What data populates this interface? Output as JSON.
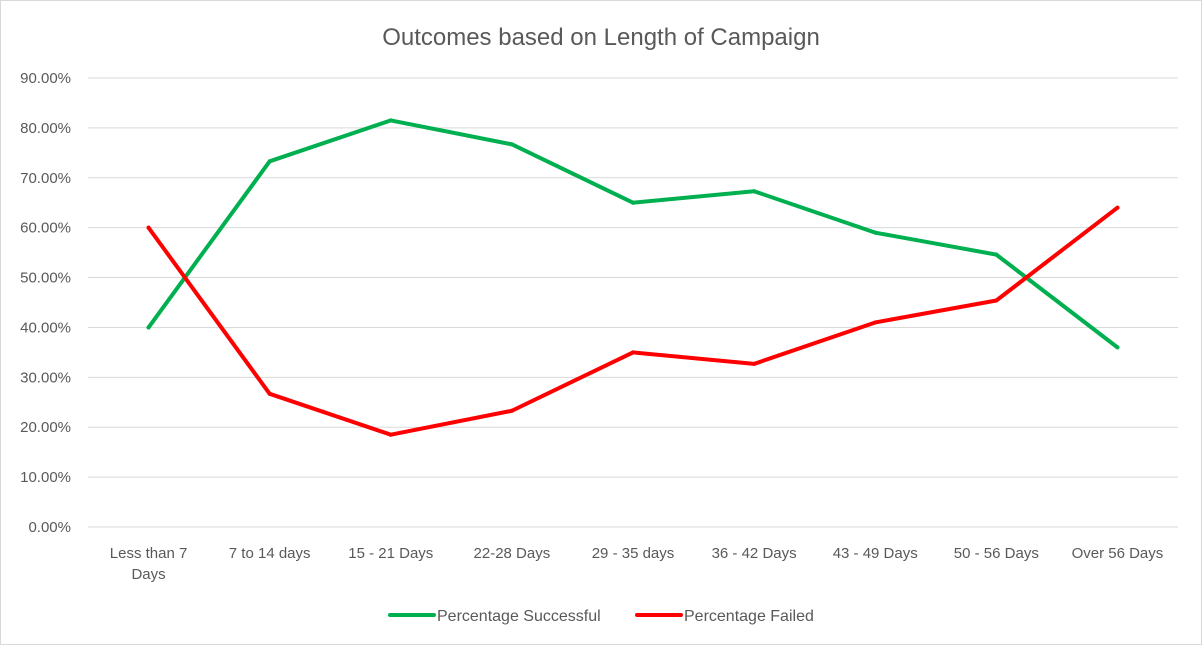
{
  "chart_data": {
    "type": "line",
    "title": "Outcomes based on Length of Campaign",
    "xlabel": "",
    "ylabel": "",
    "categories": [
      [
        "Less than 7",
        "Days"
      ],
      [
        "7 to 14 days"
      ],
      [
        "15 - 21 Days"
      ],
      [
        "22-28 Days"
      ],
      [
        "29 - 35 days"
      ],
      [
        "36 - 42 Days"
      ],
      [
        "43 - 49 Days"
      ],
      [
        "50 - 56 Days"
      ],
      [
        "Over 56 Days"
      ]
    ],
    "yticks": [
      "0.00%",
      "10.00%",
      "20.00%",
      "30.00%",
      "40.00%",
      "50.00%",
      "60.00%",
      "70.00%",
      "80.00%",
      "90.00%"
    ],
    "ylim": [
      0,
      90
    ],
    "grid": true,
    "legend_position": "bottom",
    "series": [
      {
        "name": "Percentage Successful",
        "color": "#00b050",
        "values": [
          40.0,
          73.3,
          81.5,
          76.7,
          65.0,
          67.3,
          59.0,
          54.6,
          36.0
        ]
      },
      {
        "name": "Percentage Failed",
        "color": "#ff0000",
        "values": [
          60.0,
          26.7,
          18.5,
          23.3,
          35.0,
          32.7,
          41.0,
          45.4,
          64.0
        ]
      }
    ]
  }
}
